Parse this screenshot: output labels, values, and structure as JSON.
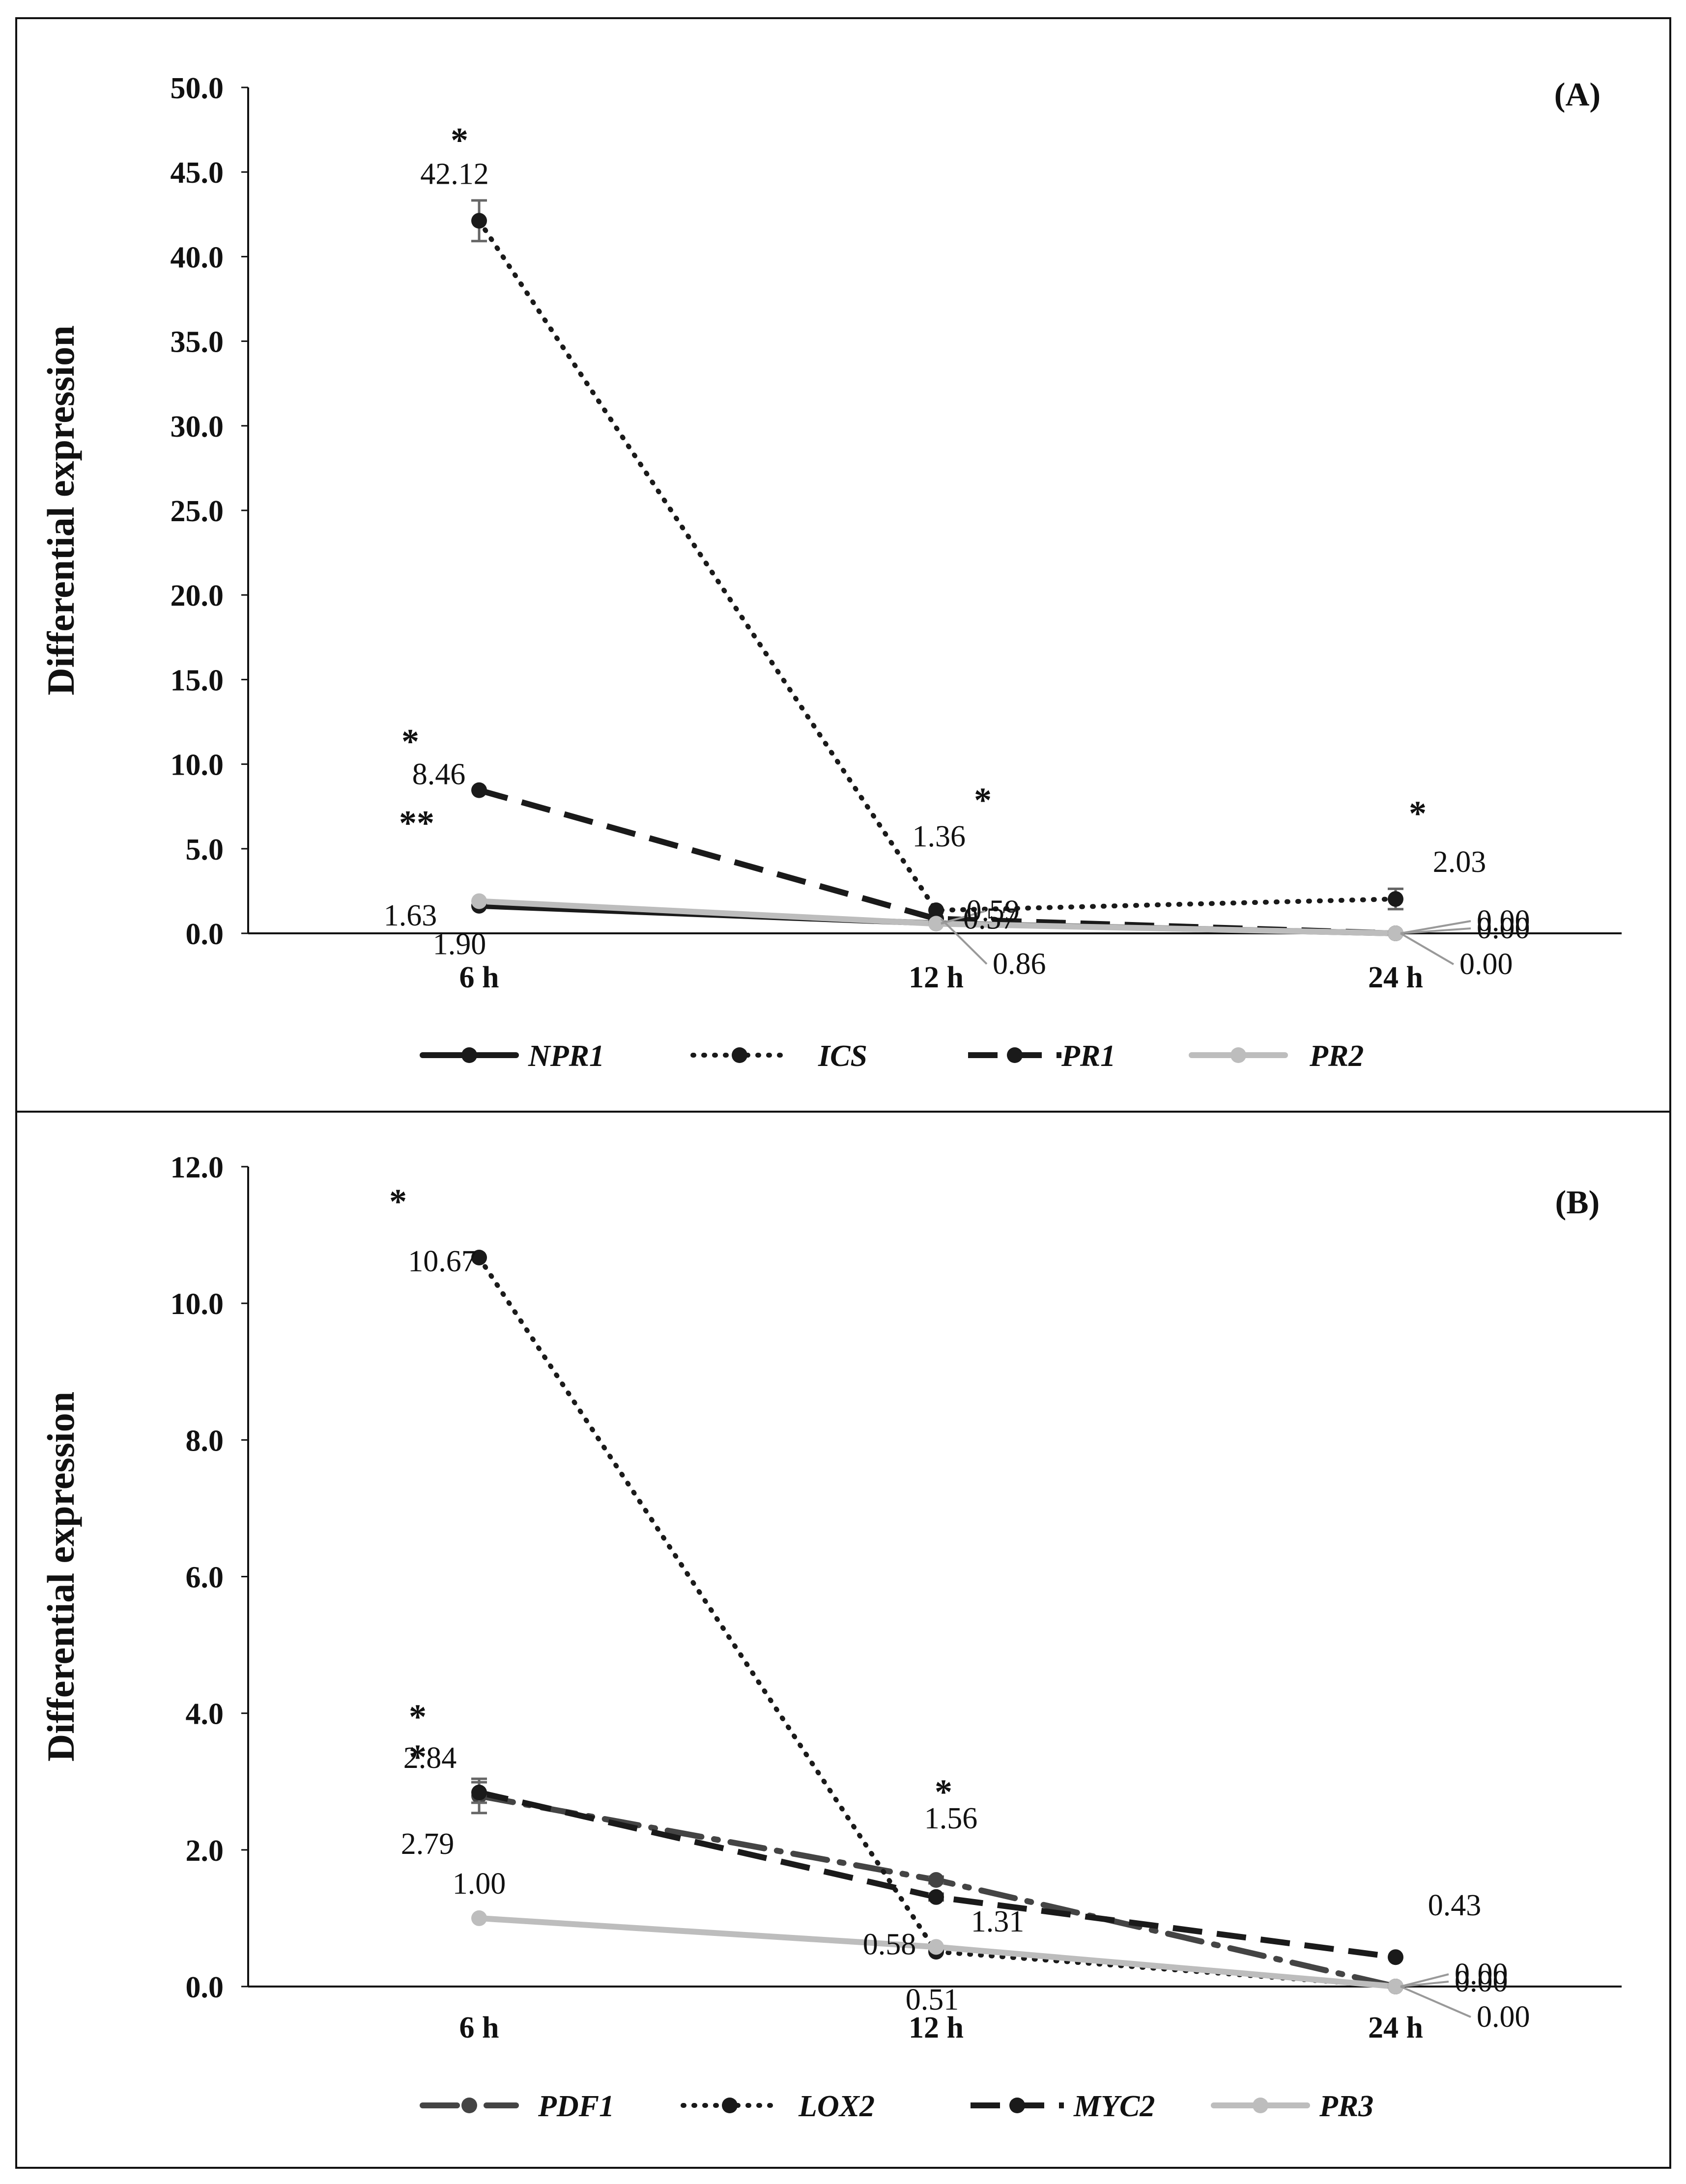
{
  "chart_data": [
    {
      "panel": "(A)",
      "type": "line",
      "title": "",
      "ylabel": "Differential expression",
      "xlabel": "",
      "categories": [
        "6 h",
        "12 h",
        "24 h"
      ],
      "y_ticks": [
        "0.0",
        "5.0",
        "10.0",
        "15.0",
        "20.0",
        "25.0",
        "30.0",
        "35.0",
        "40.0",
        "45.0",
        "50.0"
      ],
      "ylim": [
        0,
        50
      ],
      "grid": false,
      "legend_position": "bottom",
      "series": [
        {
          "name": "NPR1",
          "style": "solid",
          "color": "#1a1a1a",
          "values": [
            1.63,
            0.59,
            0.0
          ],
          "labels": [
            "1.63",
            "0.59",
            "0.00"
          ],
          "errors": [
            0,
            0,
            0
          ]
        },
        {
          "name": "ICS",
          "style": "dotted",
          "color": "#1a1a1a",
          "values": [
            42.12,
            1.36,
            2.03
          ],
          "labels": [
            "42.12",
            "1.36",
            "2.03"
          ],
          "errors": [
            1.2,
            0,
            0.6
          ]
        },
        {
          "name": "PR1",
          "style": "dashed",
          "color": "#1a1a1a",
          "values": [
            8.46,
            0.86,
            0.0
          ],
          "labels": [
            "8.46",
            "0.86",
            "0.00"
          ],
          "errors": [
            0,
            0,
            0
          ]
        },
        {
          "name": "PR2",
          "style": "solid",
          "color": "#bdbdbd",
          "values": [
            1.9,
            0.57,
            0.0
          ],
          "labels": [
            "1.90",
            "0.57",
            "0.00"
          ],
          "errors": [
            0,
            0,
            0
          ]
        }
      ],
      "significance": [
        {
          "category": "6 h",
          "value": 42.12,
          "mark": "*"
        },
        {
          "category": "6 h",
          "value": 8.46,
          "mark": "*"
        },
        {
          "category": "6 h",
          "value": 1.9,
          "mark": "**"
        },
        {
          "category": "12 h",
          "value": 1.36,
          "mark": "*"
        },
        {
          "category": "24 h",
          "value": 2.03,
          "mark": "*"
        }
      ]
    },
    {
      "panel": "(B)",
      "type": "line",
      "title": "",
      "ylabel": "Differential expression",
      "xlabel": "",
      "categories": [
        "6 h",
        "12 h",
        "24 h"
      ],
      "y_ticks": [
        "0.0",
        "2.0",
        "4.0",
        "6.0",
        "8.0",
        "10.0",
        "12.0"
      ],
      "ylim": [
        0,
        12
      ],
      "grid": false,
      "legend_position": "bottom",
      "series": [
        {
          "name": "PDF1",
          "style": "dashdot",
          "color": "#444444",
          "values": [
            2.79,
            1.56,
            0.0
          ],
          "labels": [
            "2.79",
            "1.56",
            "0.00"
          ],
          "errors": [
            0.25,
            0.05,
            0
          ]
        },
        {
          "name": "LOX2",
          "style": "dotted",
          "color": "#1a1a1a",
          "values": [
            10.67,
            0.51,
            0.0
          ],
          "labels": [
            "10.67",
            "0.51",
            "0.00"
          ],
          "errors": [
            0,
            0,
            0
          ]
        },
        {
          "name": "MYC2",
          "style": "dashed",
          "color": "#1a1a1a",
          "values": [
            2.84,
            1.31,
            0.43
          ],
          "labels": [
            "2.84",
            "1.31",
            "0.43"
          ],
          "errors": [
            0.15,
            0.05,
            0
          ]
        },
        {
          "name": "PR3",
          "style": "solid",
          "color": "#bdbdbd",
          "values": [
            1.0,
            0.58,
            0.0
          ],
          "labels": [
            "1.00",
            "0.58",
            "0.00"
          ],
          "errors": [
            0,
            0,
            0
          ]
        }
      ],
      "significance": [
        {
          "category": "6 h",
          "value": 10.67,
          "mark": "*"
        },
        {
          "category": "6 h",
          "value": 2.84,
          "mark": "*"
        },
        {
          "category": "6 h",
          "value": 2.79,
          "mark": "*"
        },
        {
          "category": "12 h",
          "value": 1.56,
          "mark": "*"
        }
      ]
    }
  ]
}
